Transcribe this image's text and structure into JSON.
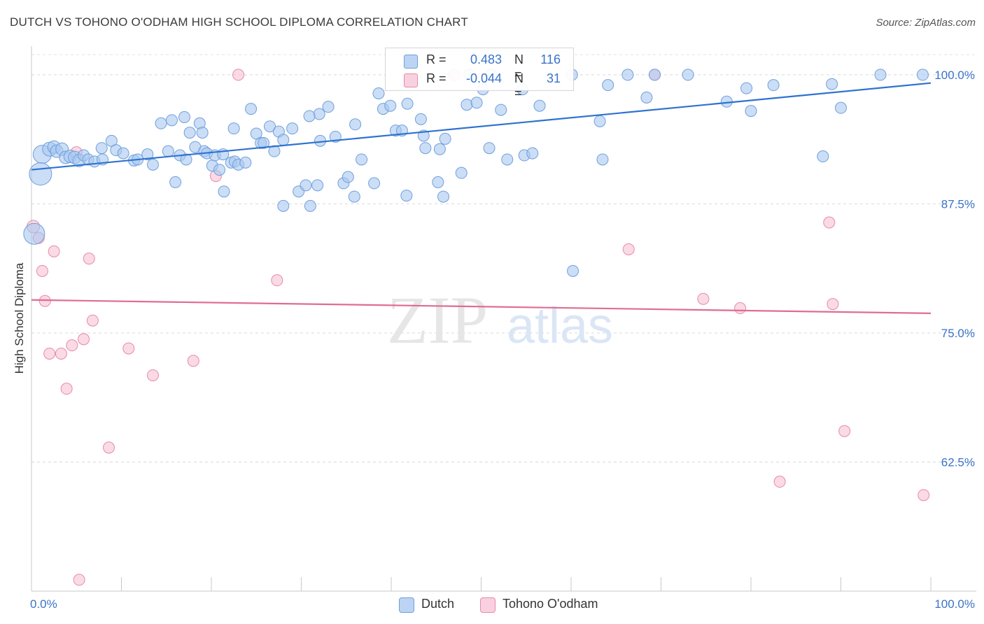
{
  "title": "DUTCH VS TOHONO O'ODHAM HIGH SCHOOL DIPLOMA CORRELATION CHART",
  "source": "Source: ZipAtlas.com",
  "watermark": {
    "zip": "ZIP",
    "atlas": "atlas"
  },
  "legend": {
    "dutch": {
      "r_label": "R =",
      "r_value": "0.483",
      "n_label": "N =",
      "n_value": "116"
    },
    "tohono": {
      "r_label": "R =",
      "r_value": "-0.044",
      "n_label": "N =",
      "n_value": "31"
    }
  },
  "colors": {
    "dutch_fill": "#a9c8f0",
    "dutch_stroke": "#6f9fdc",
    "dutch_line": "#2f72d0",
    "tohono_fill": "#f6bcd0",
    "tohono_stroke": "#e78aa9",
    "tohono_line": "#e06c93",
    "tick_text": "#3a73c9",
    "grid": "#d9d9d9"
  },
  "chart_data": {
    "type": "scatter",
    "title": "DUTCH VS TOHONO O'ODHAM HIGH SCHOOL DIPLOMA CORRELATION CHART",
    "xlabel": "",
    "ylabel": "High School Diploma",
    "xlim": [
      0,
      100
    ],
    "ylim": [
      50,
      102.5
    ],
    "x_tick_labels": [
      "0.0%",
      "100.0%"
    ],
    "y_ticks": [
      62.5,
      75.0,
      87.5,
      100.0
    ],
    "y_tick_labels": [
      "62.5%",
      "75.0%",
      "87.5%",
      "100.0%"
    ],
    "grid": true,
    "legend_position": "bottom",
    "series": [
      {
        "name": "Dutch",
        "trend": {
          "x": [
            0,
            100
          ],
          "y": [
            90.8,
            99.2
          ]
        },
        "points": [
          {
            "x": 1.2,
            "y": 92.3,
            "s": 13
          },
          {
            "x": 1.0,
            "y": 90.4,
            "s": 16
          },
          {
            "x": 0.3,
            "y": 84.6,
            "s": 15
          },
          {
            "x": 2.0,
            "y": 92.8,
            "s": 10
          },
          {
            "x": 2.5,
            "y": 93.0,
            "s": 9
          },
          {
            "x": 2.8,
            "y": 92.6,
            "s": 9
          },
          {
            "x": 3.4,
            "y": 92.8,
            "s": 9
          },
          {
            "x": 3.8,
            "y": 92.0,
            "s": 9
          },
          {
            "x": 4.3,
            "y": 92.1,
            "s": 9
          },
          {
            "x": 4.8,
            "y": 92.0,
            "s": 9
          },
          {
            "x": 5.3,
            "y": 91.7,
            "s": 9
          },
          {
            "x": 5.8,
            "y": 92.2,
            "s": 8
          },
          {
            "x": 6.3,
            "y": 91.8,
            "s": 8
          },
          {
            "x": 7.0,
            "y": 91.6,
            "s": 8
          },
          {
            "x": 7.9,
            "y": 91.8,
            "s": 8
          },
          {
            "x": 7.8,
            "y": 92.9,
            "s": 8
          },
          {
            "x": 8.9,
            "y": 93.6,
            "s": 8
          },
          {
            "x": 9.4,
            "y": 92.7,
            "s": 8
          },
          {
            "x": 10.2,
            "y": 92.4,
            "s": 8
          },
          {
            "x": 11.4,
            "y": 91.7,
            "s": 8
          },
          {
            "x": 11.8,
            "y": 91.8,
            "s": 8
          },
          {
            "x": 12.9,
            "y": 92.3,
            "s": 8
          },
          {
            "x": 13.5,
            "y": 91.3,
            "s": 8
          },
          {
            "x": 14.4,
            "y": 95.3,
            "s": 8
          },
          {
            "x": 15.2,
            "y": 92.6,
            "s": 8
          },
          {
            "x": 15.6,
            "y": 95.6,
            "s": 8
          },
          {
            "x": 16.5,
            "y": 92.2,
            "s": 8
          },
          {
            "x": 17.2,
            "y": 91.8,
            "s": 8
          },
          {
            "x": 16.0,
            "y": 89.6,
            "s": 8
          },
          {
            "x": 17.0,
            "y": 95.9,
            "s": 8
          },
          {
            "x": 17.6,
            "y": 94.4,
            "s": 8
          },
          {
            "x": 18.2,
            "y": 93.0,
            "s": 8
          },
          {
            "x": 18.7,
            "y": 95.3,
            "s": 8
          },
          {
            "x": 19.0,
            "y": 94.4,
            "s": 8
          },
          {
            "x": 19.2,
            "y": 92.6,
            "s": 8
          },
          {
            "x": 19.5,
            "y": 92.4,
            "s": 8
          },
          {
            "x": 20.1,
            "y": 91.2,
            "s": 8
          },
          {
            "x": 20.4,
            "y": 92.2,
            "s": 8
          },
          {
            "x": 20.9,
            "y": 90.8,
            "s": 8
          },
          {
            "x": 21.3,
            "y": 92.3,
            "s": 8
          },
          {
            "x": 22.2,
            "y": 91.5,
            "s": 8
          },
          {
            "x": 22.6,
            "y": 91.6,
            "s": 8
          },
          {
            "x": 23.0,
            "y": 91.3,
            "s": 8
          },
          {
            "x": 23.8,
            "y": 91.5,
            "s": 8
          },
          {
            "x": 21.4,
            "y": 88.7,
            "s": 8
          },
          {
            "x": 22.5,
            "y": 94.8,
            "s": 8
          },
          {
            "x": 24.4,
            "y": 96.7,
            "s": 8
          },
          {
            "x": 25.0,
            "y": 94.3,
            "s": 8
          },
          {
            "x": 25.5,
            "y": 93.4,
            "s": 8
          },
          {
            "x": 25.8,
            "y": 93.4,
            "s": 8
          },
          {
            "x": 26.5,
            "y": 95.0,
            "s": 8
          },
          {
            "x": 27.5,
            "y": 94.5,
            "s": 8
          },
          {
            "x": 27.0,
            "y": 92.6,
            "s": 8
          },
          {
            "x": 28.0,
            "y": 93.7,
            "s": 8
          },
          {
            "x": 29.0,
            "y": 94.8,
            "s": 8
          },
          {
            "x": 28.0,
            "y": 87.3,
            "s": 8
          },
          {
            "x": 29.7,
            "y": 88.7,
            "s": 8
          },
          {
            "x": 30.5,
            "y": 89.3,
            "s": 8
          },
          {
            "x": 31.0,
            "y": 87.3,
            "s": 8
          },
          {
            "x": 31.8,
            "y": 89.3,
            "s": 8
          },
          {
            "x": 32.1,
            "y": 93.6,
            "s": 8
          },
          {
            "x": 32.0,
            "y": 96.2,
            "s": 8
          },
          {
            "x": 30.9,
            "y": 96.0,
            "s": 8
          },
          {
            "x": 33.0,
            "y": 96.9,
            "s": 8
          },
          {
            "x": 33.8,
            "y": 94.0,
            "s": 8
          },
          {
            "x": 34.7,
            "y": 89.5,
            "s": 8
          },
          {
            "x": 35.2,
            "y": 90.1,
            "s": 8
          },
          {
            "x": 35.9,
            "y": 88.2,
            "s": 8
          },
          {
            "x": 36.0,
            "y": 95.2,
            "s": 8
          },
          {
            "x": 36.7,
            "y": 91.8,
            "s": 8
          },
          {
            "x": 38.1,
            "y": 89.5,
            "s": 8
          },
          {
            "x": 38.6,
            "y": 98.2,
            "s": 8
          },
          {
            "x": 39.1,
            "y": 96.7,
            "s": 8
          },
          {
            "x": 39.9,
            "y": 97.0,
            "s": 8
          },
          {
            "x": 40.5,
            "y": 94.6,
            "s": 8
          },
          {
            "x": 41.2,
            "y": 94.6,
            "s": 8
          },
          {
            "x": 41.8,
            "y": 97.2,
            "s": 8
          },
          {
            "x": 41.7,
            "y": 88.3,
            "s": 8
          },
          {
            "x": 43.3,
            "y": 95.7,
            "s": 8
          },
          {
            "x": 43.6,
            "y": 94.1,
            "s": 8
          },
          {
            "x": 43.8,
            "y": 92.9,
            "s": 8
          },
          {
            "x": 45.2,
            "y": 89.6,
            "s": 8
          },
          {
            "x": 45.4,
            "y": 92.8,
            "s": 8
          },
          {
            "x": 46.0,
            "y": 93.8,
            "s": 8
          },
          {
            "x": 45.8,
            "y": 88.2,
            "s": 8
          },
          {
            "x": 47.8,
            "y": 90.5,
            "s": 8
          },
          {
            "x": 48.4,
            "y": 97.1,
            "s": 8
          },
          {
            "x": 48.7,
            "y": 100.0,
            "s": 8
          },
          {
            "x": 49.5,
            "y": 97.3,
            "s": 8
          },
          {
            "x": 50.2,
            "y": 98.6,
            "s": 8
          },
          {
            "x": 51.1,
            "y": 100.0,
            "s": 8
          },
          {
            "x": 52.2,
            "y": 96.6,
            "s": 8
          },
          {
            "x": 50.9,
            "y": 92.9,
            "s": 8
          },
          {
            "x": 52.9,
            "y": 91.8,
            "s": 8
          },
          {
            "x": 54.6,
            "y": 98.6,
            "s": 8
          },
          {
            "x": 54.8,
            "y": 92.2,
            "s": 8
          },
          {
            "x": 55.7,
            "y": 92.4,
            "s": 8
          },
          {
            "x": 56.5,
            "y": 97.0,
            "s": 8
          },
          {
            "x": 60.1,
            "y": 100.0,
            "s": 8
          },
          {
            "x": 60.2,
            "y": 81.0,
            "s": 8
          },
          {
            "x": 63.2,
            "y": 95.5,
            "s": 8
          },
          {
            "x": 63.5,
            "y": 91.8,
            "s": 8
          },
          {
            "x": 64.1,
            "y": 99.0,
            "s": 8
          },
          {
            "x": 66.3,
            "y": 100.0,
            "s": 8
          },
          {
            "x": 68.4,
            "y": 97.8,
            "s": 8
          },
          {
            "x": 69.3,
            "y": 100.0,
            "s": 8
          },
          {
            "x": 73.0,
            "y": 100.0,
            "s": 8
          },
          {
            "x": 77.3,
            "y": 97.4,
            "s": 8
          },
          {
            "x": 79.5,
            "y": 98.7,
            "s": 8
          },
          {
            "x": 80.0,
            "y": 96.5,
            "s": 8
          },
          {
            "x": 82.5,
            "y": 99.0,
            "s": 8
          },
          {
            "x": 89.0,
            "y": 99.1,
            "s": 8
          },
          {
            "x": 90.0,
            "y": 96.8,
            "s": 8
          },
          {
            "x": 94.4,
            "y": 100.0,
            "s": 8
          },
          {
            "x": 99.1,
            "y": 100.0,
            "s": 8
          },
          {
            "x": 88.0,
            "y": 92.1,
            "s": 8
          }
        ]
      },
      {
        "name": "Tohono O'odham",
        "trend": {
          "x": [
            0,
            100
          ],
          "y": [
            78.2,
            76.9
          ]
        },
        "points": [
          {
            "x": 0.2,
            "y": 85.3,
            "s": 9
          },
          {
            "x": 0.8,
            "y": 84.2,
            "s": 8
          },
          {
            "x": 1.2,
            "y": 81.0,
            "s": 8
          },
          {
            "x": 1.5,
            "y": 78.1,
            "s": 8
          },
          {
            "x": 2.0,
            "y": 73.0,
            "s": 8
          },
          {
            "x": 2.5,
            "y": 82.9,
            "s": 8
          },
          {
            "x": 3.3,
            "y": 73.0,
            "s": 8
          },
          {
            "x": 3.9,
            "y": 69.6,
            "s": 8
          },
          {
            "x": 4.5,
            "y": 73.8,
            "s": 8
          },
          {
            "x": 5.0,
            "y": 92.5,
            "s": 8
          },
          {
            "x": 5.3,
            "y": 51.1,
            "s": 8
          },
          {
            "x": 5.8,
            "y": 74.4,
            "s": 8
          },
          {
            "x": 6.4,
            "y": 82.2,
            "s": 8
          },
          {
            "x": 6.8,
            "y": 76.2,
            "s": 8
          },
          {
            "x": 8.6,
            "y": 63.9,
            "s": 8
          },
          {
            "x": 10.8,
            "y": 73.5,
            "s": 8
          },
          {
            "x": 13.5,
            "y": 70.9,
            "s": 8
          },
          {
            "x": 18.0,
            "y": 72.3,
            "s": 8
          },
          {
            "x": 20.5,
            "y": 90.2,
            "s": 8
          },
          {
            "x": 23.0,
            "y": 100.0,
            "s": 8
          },
          {
            "x": 27.3,
            "y": 80.1,
            "s": 8
          },
          {
            "x": 47.0,
            "y": 100.0,
            "s": 8
          },
          {
            "x": 66.4,
            "y": 83.1,
            "s": 8
          },
          {
            "x": 69.3,
            "y": 100.0,
            "s": 8
          },
          {
            "x": 74.7,
            "y": 78.3,
            "s": 8
          },
          {
            "x": 78.8,
            "y": 77.4,
            "s": 8
          },
          {
            "x": 83.2,
            "y": 60.6,
            "s": 8
          },
          {
            "x": 88.7,
            "y": 85.7,
            "s": 8
          },
          {
            "x": 89.1,
            "y": 77.8,
            "s": 8
          },
          {
            "x": 90.4,
            "y": 65.5,
            "s": 8
          },
          {
            "x": 99.2,
            "y": 59.3,
            "s": 8
          }
        ]
      }
    ]
  }
}
